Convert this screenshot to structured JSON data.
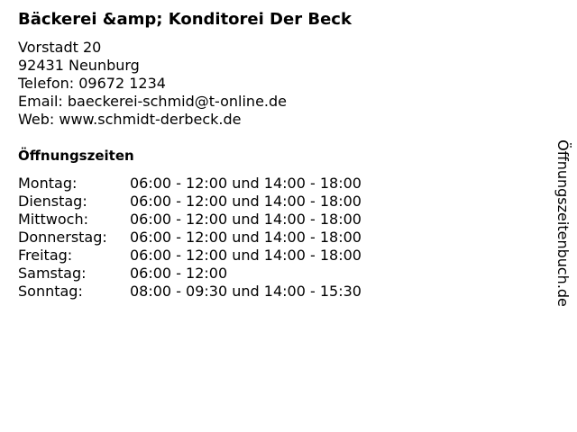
{
  "business": {
    "name": "Bäckerei &amp; Konditorei Der Beck",
    "street": "Vorstadt 20",
    "city": "92431 Neunburg",
    "phone": "Telefon: 09672 1234",
    "email": "Email: baeckerei-schmid@t-online.de",
    "web": "Web: www.schmidt-derbeck.de"
  },
  "hours_heading": "Öffnungszeiten",
  "hours": [
    {
      "day": "Montag:",
      "time": "06:00 - 12:00 und 14:00 - 18:00"
    },
    {
      "day": "Dienstag:",
      "time": "06:00 - 12:00 und 14:00 - 18:00"
    },
    {
      "day": "Mittwoch:",
      "time": "06:00 - 12:00 und 14:00 - 18:00"
    },
    {
      "day": "Donnerstag:",
      "time": "06:00 - 12:00 und 14:00 - 18:00"
    },
    {
      "day": "Freitag:",
      "time": "06:00 - 12:00 und 14:00 - 18:00"
    },
    {
      "day": "Samstag:",
      "time": "06:00 - 12:00"
    },
    {
      "day": "Sonntag:",
      "time": "08:00 - 09:30 und 14:00 - 15:30"
    }
  ],
  "watermark": "Öffnungszeitenbuch.de"
}
